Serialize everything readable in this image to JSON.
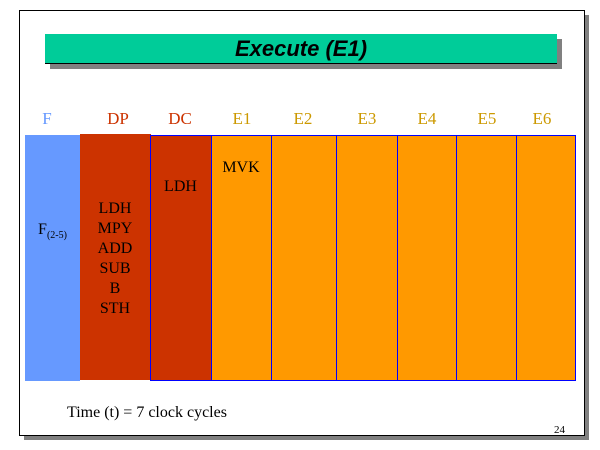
{
  "slide": {
    "title": "Execute (E1)",
    "stages": [
      {
        "label": "F",
        "color": "#6699FF"
      },
      {
        "label": "DP",
        "color": "#CC3300"
      },
      {
        "label": "DC",
        "color": "#CC3300"
      },
      {
        "label": "E1",
        "color": "#CC9900"
      },
      {
        "label": "E2",
        "color": "#CC9900"
      },
      {
        "label": "E3",
        "color": "#CC9900"
      },
      {
        "label": "E4",
        "color": "#CC9900"
      },
      {
        "label": "E5",
        "color": "#CC9900"
      },
      {
        "label": "E6",
        "color": "#CC9900"
      }
    ],
    "f_cell": {
      "main": "F",
      "sub": "(2-5)"
    },
    "dp_instructions": [
      "LDH",
      "MPY",
      "ADD",
      "SUB",
      "B",
      "STH"
    ],
    "dc_instruction": "LDH",
    "e1_instruction": "MVK",
    "footer": "Time (t) = 7 clock cycles",
    "page_number": "24",
    "colors": {
      "title_bar": "#00CC99",
      "fetch": "#6699FF",
      "decode": "#CC3300",
      "execute": "#FF9900",
      "border": "#0000FF"
    }
  }
}
